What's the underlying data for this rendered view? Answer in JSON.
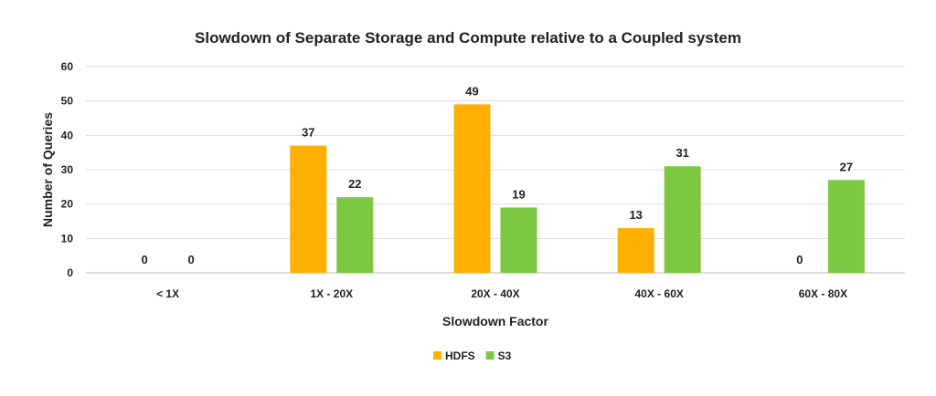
{
  "chart_data": {
    "type": "bar",
    "title": "Slowdown of Separate Storage and Compute relative to a Coupled system",
    "xlabel": "Slowdown Factor",
    "ylabel": "Number of Queries",
    "ylim": [
      0,
      60
    ],
    "yticks": [
      0,
      10,
      20,
      30,
      40,
      50,
      60
    ],
    "grid": true,
    "legend": "bottom",
    "categories": [
      "< 1X",
      "1X - 20X",
      "20X - 40X",
      "40X - 60X",
      "60X - 80X"
    ],
    "series": [
      {
        "name": "HDFS",
        "color": "#FFB000",
        "values": [
          0,
          37,
          49,
          13,
          0
        ]
      },
      {
        "name": "S3",
        "color": "#7DC843",
        "values": [
          0,
          22,
          19,
          31,
          27
        ]
      }
    ]
  }
}
